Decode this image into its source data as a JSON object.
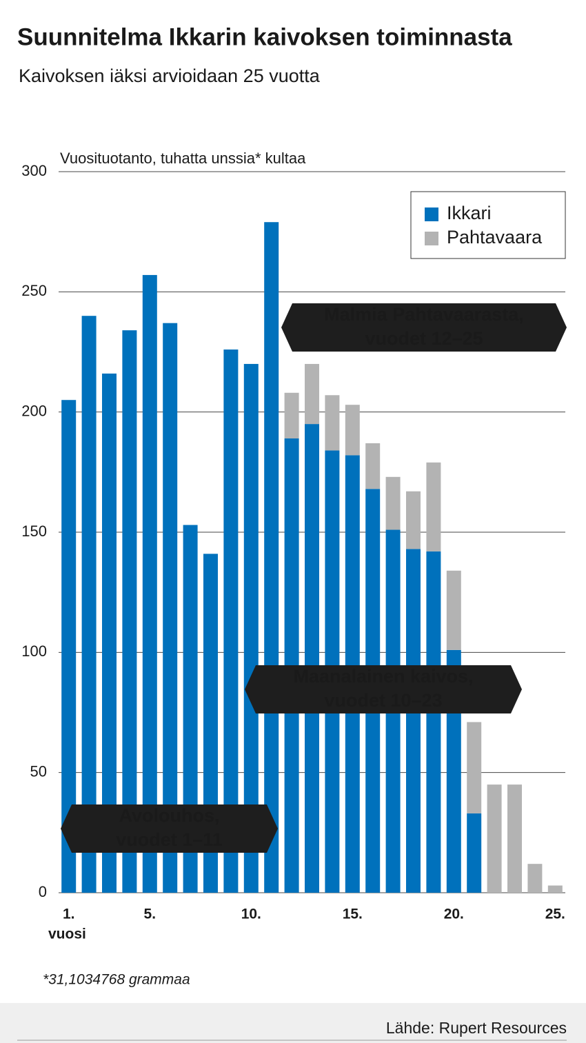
{
  "chart_data": {
    "type": "stacked-bar",
    "title": "Suunnitelma Ikkarin kaivoksen toiminnasta",
    "subtitle": "Kaivoksen iäksi arvioidaan 25 vuotta",
    "y_label": "Vuosituotanto, tuhatta unssia* kultaa",
    "x_label": "vuosi",
    "categories": [
      "1.",
      null,
      null,
      null,
      "5.",
      null,
      null,
      null,
      null,
      "10.",
      null,
      null,
      null,
      null,
      "15.",
      null,
      null,
      null,
      null,
      "20.",
      null,
      null,
      null,
      null,
      "25."
    ],
    "series": [
      {
        "name": "Ikkari",
        "color": "#0071bc",
        "values": [
          205,
          240,
          216,
          234,
          257,
          237,
          153,
          141,
          226,
          220,
          279,
          189,
          195,
          184,
          182,
          168,
          151,
          143,
          142,
          101,
          33,
          0,
          0,
          0,
          0
        ]
      },
      {
        "name": "Pahtavaara",
        "color": "#b3b3b3",
        "values": [
          0,
          0,
          0,
          0,
          0,
          0,
          0,
          0,
          0,
          0,
          0,
          19,
          25,
          23,
          21,
          19,
          22,
          24,
          37,
          33,
          38,
          45,
          45,
          12,
          3
        ]
      }
    ],
    "ylim": [
      0,
      300
    ],
    "yticks": [
      0,
      50,
      100,
      150,
      200,
      250,
      300
    ],
    "grid": true,
    "legend": "top-right",
    "annotations": [
      [
        "Malmia Pahtavaarasta,",
        "vuodet 12–25"
      ],
      [
        "Maanalainen kaivos,",
        "vuodet 10–23"
      ],
      [
        "Avolouhos,",
        "vuodet 1–11"
      ]
    ],
    "footnote": "*31,1034768 grammaa",
    "source": "Lähde: Rupert Resources"
  }
}
